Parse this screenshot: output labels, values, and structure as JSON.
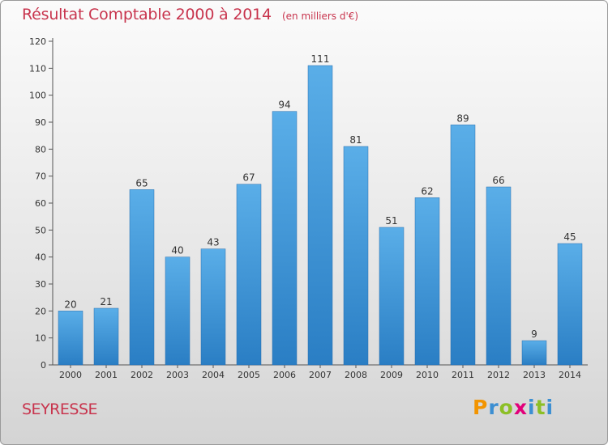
{
  "chart_data": {
    "type": "bar",
    "title": "Résultat Comptable 2000 à 2014",
    "subtitle": "(en milliers d'€)",
    "categories": [
      "2000",
      "2001",
      "2002",
      "2003",
      "2004",
      "2005",
      "2006",
      "2007",
      "2008",
      "2009",
      "2010",
      "2011",
      "2012",
      "2013",
      "2014"
    ],
    "values": [
      20,
      21,
      65,
      40,
      43,
      67,
      94,
      111,
      81,
      51,
      62,
      89,
      66,
      9,
      45
    ],
    "ylim": [
      0,
      120
    ],
    "yticks": [
      0,
      10,
      20,
      30,
      40,
      50,
      60,
      70,
      80,
      90,
      100,
      110,
      120
    ],
    "xlabel": "",
    "ylabel": "",
    "grid": false,
    "bar_color_top": "#5aaee8",
    "bar_color_bottom": "#2a7ec4"
  },
  "footer": {
    "commune": "SEYRESSE",
    "logo": {
      "letters": [
        "P",
        "r",
        "o",
        "x",
        "i",
        "t",
        "i"
      ]
    }
  },
  "colors": {
    "title": "#c8344d",
    "axis": "#555555",
    "label": "#333333"
  }
}
